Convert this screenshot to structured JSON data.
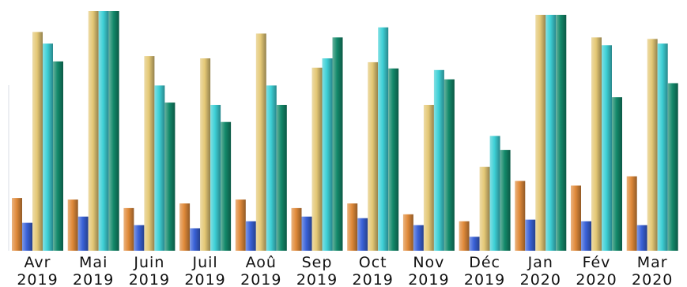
{
  "chart_data": {
    "type": "bar",
    "categories": [
      [
        "Avr",
        "2019"
      ],
      [
        "Mai",
        "2019"
      ],
      [
        "Juin",
        "2019"
      ],
      [
        "Juil",
        "2019"
      ],
      [
        "Aoû",
        "2019"
      ],
      [
        "Sep",
        "2019"
      ],
      [
        "Oct",
        "2019"
      ],
      [
        "Nov",
        "2019"
      ],
      [
        "Déc",
        "2019"
      ],
      [
        "Jan",
        "2020"
      ],
      [
        "Fév",
        "2020"
      ],
      [
        "Mar",
        "2020"
      ]
    ],
    "series": [
      {
        "color": "#e08a3a",
        "values": [
          68,
          66,
          55,
          61,
          66,
          55,
          61,
          47,
          38,
          90,
          84,
          96
        ]
      },
      {
        "color": "#3a62d8",
        "values": [
          36,
          44,
          33,
          29,
          38,
          44,
          42,
          33,
          18,
          40,
          38,
          33
        ]
      },
      {
        "color": "#e4c876",
        "values": [
          282,
          309,
          251,
          248,
          280,
          236,
          243,
          188,
          108,
          304,
          275,
          273
        ]
      },
      {
        "color": "#3ed0d6",
        "values": [
          267,
          309,
          213,
          188,
          213,
          248,
          288,
          233,
          148,
          304,
          265,
          267
        ]
      },
      {
        "color": "#13896a",
        "values": [
          244,
          309,
          191,
          166,
          188,
          275,
          235,
          221,
          130,
          304,
          198,
          216
        ]
      }
    ],
    "ylim": [
      0,
      309
    ],
    "grid": false,
    "legend": "none"
  }
}
